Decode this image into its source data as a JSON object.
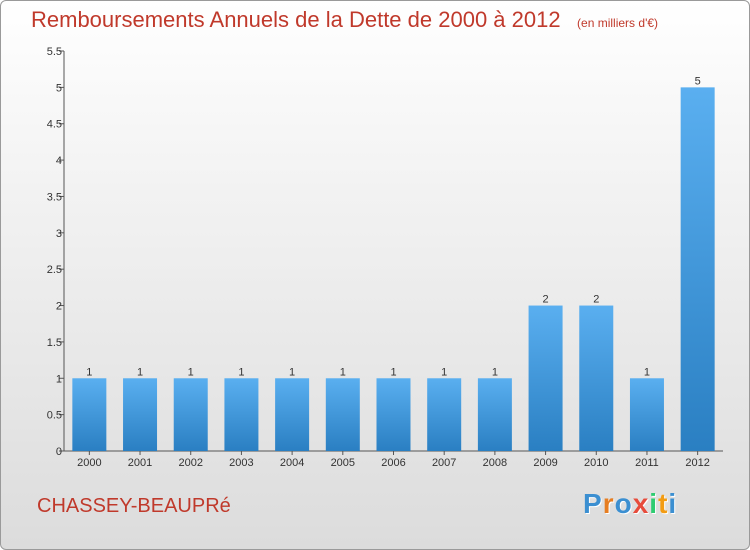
{
  "chart_data": {
    "type": "bar",
    "title": "Remboursements Annuels de la Dette de 2000 à 2012",
    "subtitle": "(en milliers d'€)",
    "categories": [
      "2000",
      "2001",
      "2002",
      "2003",
      "2004",
      "2005",
      "2006",
      "2007",
      "2008",
      "2009",
      "2010",
      "2011",
      "2012"
    ],
    "values": [
      1,
      1,
      1,
      1,
      1,
      1,
      1,
      1,
      1,
      2,
      2,
      1,
      5
    ],
    "ylim": [
      0,
      5.5
    ],
    "yticks": [
      0,
      0.5,
      1,
      1.5,
      2,
      2.5,
      3,
      3.5,
      4,
      4.5,
      5,
      5.5
    ],
    "ytick_labels": [
      "0",
      "0.5",
      "1",
      "1.5",
      "2",
      "2.5",
      "3",
      "3.5",
      "4",
      "4.5",
      "5",
      "5.5"
    ],
    "bar_color": "#3a93d6",
    "grid": false
  },
  "footer": {
    "commune": "CHASSEY-BEAUPRé",
    "brand": "Proxiti",
    "brand_letters": [
      "P",
      "r",
      "o",
      "x",
      "i",
      "t",
      "i"
    ],
    "brand_colors": [
      "#3b8fd1",
      "#e67e22",
      "#3b8fd1",
      "#e74c3c",
      "#2ecc71",
      "#f39c12",
      "#3b8fd1"
    ]
  }
}
